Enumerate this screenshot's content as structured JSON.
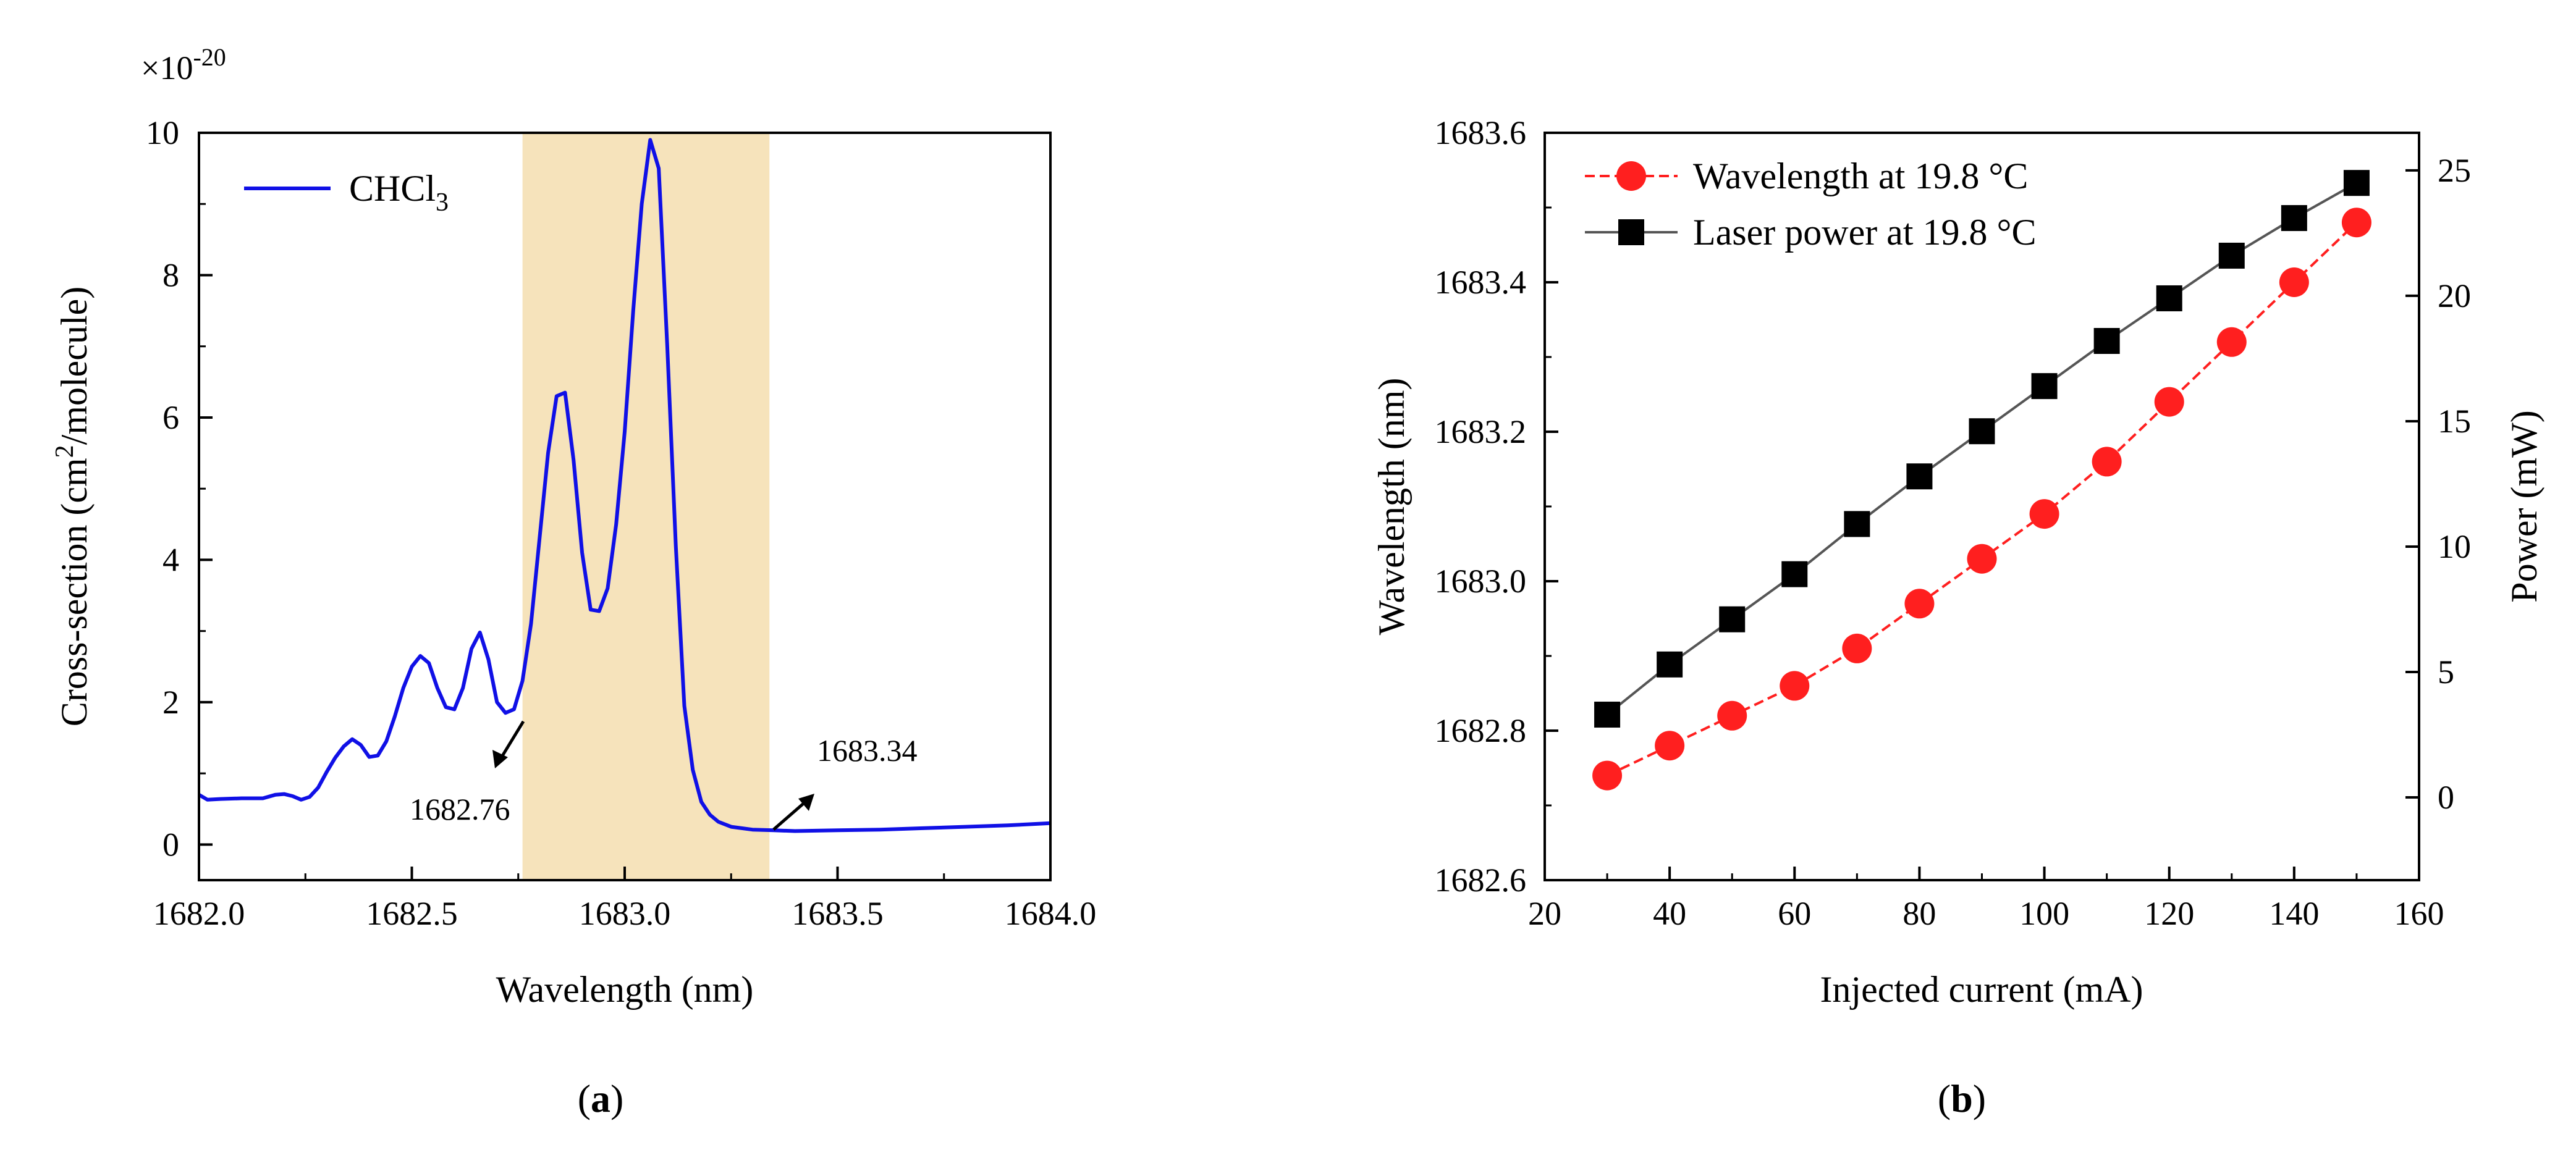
{
  "chart_data": [
    {
      "panel_label": "a",
      "type": "line",
      "xlabel": "Wavelength (nm)",
      "ylabel_parts": {
        "pre": "Cross-section (cm",
        "sup": "2",
        "post": "/molecule)"
      },
      "y_multiplier": {
        "base": "×10",
        "exp": "-20"
      },
      "xlim": [
        1682.0,
        1684.0
      ],
      "ylim": [
        -0.5,
        10
      ],
      "xticks": [
        "1682.0",
        "1682.5",
        "1683.0",
        "1683.5",
        "1684.0"
      ],
      "yticks": [
        "0",
        "2",
        "4",
        "6",
        "8",
        "10"
      ],
      "highlight_band": {
        "x0": 1682.76,
        "x1": 1683.34,
        "color": "#f6e3bb"
      },
      "annotations": [
        {
          "text": "1682.76",
          "x": 1682.76
        },
        {
          "text": "1683.34",
          "x": 1683.34
        }
      ],
      "series": [
        {
          "name_parts": {
            "pre": "CHCl",
            "sub": "3"
          },
          "color": "#1010e6",
          "x": [
            1682.0,
            1682.02,
            1682.05,
            1682.1,
            1682.15,
            1682.18,
            1682.2,
            1682.22,
            1682.24,
            1682.26,
            1682.28,
            1682.3,
            1682.32,
            1682.34,
            1682.36,
            1682.38,
            1682.4,
            1682.42,
            1682.44,
            1682.46,
            1682.48,
            1682.5,
            1682.52,
            1682.54,
            1682.56,
            1682.58,
            1682.6,
            1682.62,
            1682.64,
            1682.66,
            1682.68,
            1682.7,
            1682.72,
            1682.74,
            1682.76,
            1682.78,
            1682.8,
            1682.82,
            1682.84,
            1682.86,
            1682.88,
            1682.9,
            1682.92,
            1682.94,
            1682.96,
            1682.98,
            1683.0,
            1683.02,
            1683.04,
            1683.06,
            1683.08,
            1683.1,
            1683.12,
            1683.14,
            1683.16,
            1683.18,
            1683.2,
            1683.22,
            1683.25,
            1683.3,
            1683.35,
            1683.4,
            1683.5,
            1683.6,
            1683.7,
            1683.8,
            1683.9,
            1684.0
          ],
          "y": [
            0.7,
            0.63,
            0.64,
            0.65,
            0.65,
            0.7,
            0.71,
            0.68,
            0.63,
            0.67,
            0.8,
            1.02,
            1.22,
            1.38,
            1.48,
            1.4,
            1.23,
            1.25,
            1.45,
            1.8,
            2.2,
            2.5,
            2.65,
            2.55,
            2.2,
            1.93,
            1.9,
            2.2,
            2.75,
            2.98,
            2.6,
            2.0,
            1.85,
            1.9,
            2.3,
            3.1,
            4.3,
            5.5,
            6.3,
            6.35,
            5.4,
            4.1,
            3.3,
            3.28,
            3.6,
            4.5,
            5.8,
            7.5,
            9.0,
            9.9,
            9.5,
            7.0,
            4.2,
            1.95,
            1.05,
            0.6,
            0.42,
            0.32,
            0.25,
            0.21,
            0.2,
            0.19,
            0.2,
            0.21,
            0.23,
            0.25,
            0.27,
            0.3
          ]
        }
      ]
    },
    {
      "panel_label": "b",
      "type": "line",
      "xlabel": "Injected current (mA)",
      "ylabel": "Wavelength (nm)",
      "y2label": "Power (mW)",
      "xlim": [
        20,
        160
      ],
      "ylim": [
        1682.6,
        1683.6
      ],
      "y2lim": [
        -3.3,
        26.5
      ],
      "xticks": [
        "20",
        "40",
        "60",
        "80",
        "100",
        "120",
        "140",
        "160"
      ],
      "yticks": [
        "1682.6",
        "1682.8",
        "1683.0",
        "1683.2",
        "1683.4",
        "1683.6"
      ],
      "y2ticks": [
        "0",
        "5",
        "10",
        "15",
        "20",
        "25"
      ],
      "series": [
        {
          "name": "Wavelength at 19.8 °C",
          "axis": "left",
          "color": "#ff1f1f",
          "marker": "circle",
          "x": [
            30,
            40,
            50,
            60,
            70,
            80,
            90,
            100,
            110,
            120,
            130,
            140,
            150
          ],
          "y": [
            1682.74,
            1682.78,
            1682.82,
            1682.86,
            1682.91,
            1682.97,
            1683.03,
            1683.09,
            1683.16,
            1683.24,
            1683.32,
            1683.4,
            1683.48
          ]
        },
        {
          "name": "Laser power at 19.8 °C",
          "axis": "right",
          "color": "#000000",
          "line_color": "#555555",
          "marker": "square",
          "x": [
            30,
            40,
            50,
            60,
            70,
            80,
            90,
            100,
            110,
            120,
            130,
            140,
            150
          ],
          "y": [
            3.3,
            5.3,
            7.1,
            8.9,
            10.9,
            12.8,
            14.6,
            16.4,
            18.2,
            19.9,
            21.6,
            23.1,
            24.5
          ]
        }
      ]
    }
  ]
}
